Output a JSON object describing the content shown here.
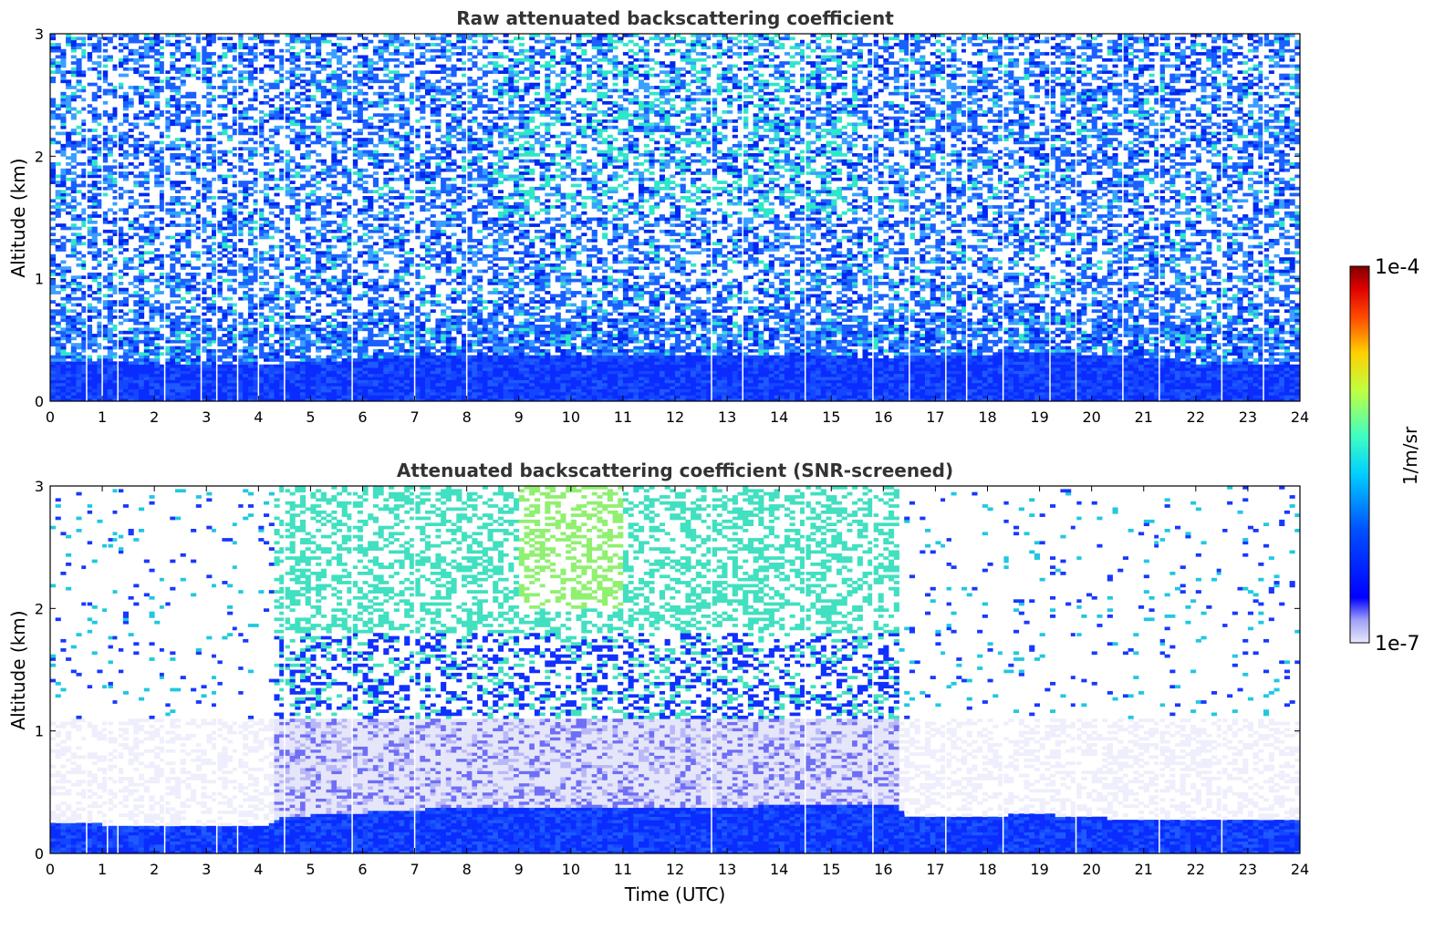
{
  "chart_data": [
    {
      "type": "heatmap",
      "title": "Raw attenuated backscattering coefficient",
      "xlabel": "",
      "ylabel": "Altitude (km)",
      "xlim": [
        0,
        24
      ],
      "ylim": [
        0,
        3
      ],
      "x_ticks": [
        "0",
        "1",
        "2",
        "3",
        "4",
        "5",
        "6",
        "7",
        "8",
        "9",
        "10",
        "11",
        "12",
        "13",
        "14",
        "15",
        "16",
        "17",
        "18",
        "19",
        "20",
        "21",
        "22",
        "23",
        "24"
      ],
      "y_ticks": [
        "0",
        "1",
        "2",
        "3"
      ],
      "description_values": {
        "boundary_layer_top_km": [
          [
            0,
            0.32
          ],
          [
            4,
            0.3
          ],
          [
            8,
            0.38
          ],
          [
            12,
            0.38
          ],
          [
            16,
            0.36
          ],
          [
            19,
            0.4
          ],
          [
            21.5,
            0.35
          ],
          [
            22,
            0.3
          ],
          [
            24,
            0.3
          ]
        ],
        "noise_level": "high",
        "dropout_times_utc": [
          0.7,
          1.0,
          1.3,
          2.2,
          2.9,
          3.2,
          3.6,
          4.0,
          4.5,
          5.8,
          7.0,
          8.0,
          12.7,
          13.3,
          14.5,
          15.8,
          16.5,
          17.2,
          17.6,
          18.3,
          19.2,
          19.7,
          20.6,
          21.3,
          22.5,
          23.3
        ]
      }
    },
    {
      "type": "heatmap",
      "title": "Attenuated backscattering coefficient (SNR-screened)",
      "xlabel": "Time (UTC)",
      "ylabel": "Altitude (km)",
      "xlim": [
        0,
        24
      ],
      "ylim": [
        0,
        3
      ],
      "x_ticks": [
        "0",
        "1",
        "2",
        "3",
        "4",
        "5",
        "6",
        "7",
        "8",
        "9",
        "10",
        "11",
        "12",
        "13",
        "14",
        "15",
        "16",
        "17",
        "18",
        "19",
        "20",
        "21",
        "22",
        "23",
        "24"
      ],
      "y_ticks": [
        "0",
        "1",
        "2",
        "3"
      ],
      "description_values": {
        "boundary_layer_top_km": [
          [
            0,
            0.24
          ],
          [
            4.2,
            0.23
          ],
          [
            4.4,
            0.3
          ],
          [
            8,
            0.38
          ],
          [
            12,
            0.38
          ],
          [
            16.3,
            0.4
          ],
          [
            16.4,
            0.29
          ],
          [
            19,
            0.32
          ],
          [
            21,
            0.27
          ],
          [
            24,
            0.27
          ]
        ],
        "screening_change_time_utc": 16.3,
        "residual_layer_top_km": 1.1
      }
    }
  ],
  "colorbar": {
    "label": "1/m/sr",
    "min_label": "1e-7",
    "max_label": "1e-4",
    "scale": "log",
    "colormap": [
      "#e8e8fa",
      "#a0a0f8",
      "#0000ff",
      "#0050ff",
      "#00d0ff",
      "#40ffc0",
      "#c0ff40",
      "#ffd000",
      "#ff5000",
      "#e00000",
      "#800000"
    ]
  }
}
